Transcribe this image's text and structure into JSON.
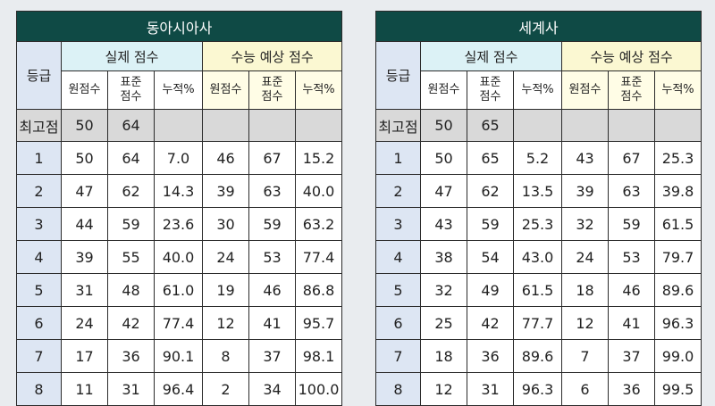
{
  "labels": {
    "grade": "등급",
    "actual": "실제 점수",
    "csat": "수능 예상 점수",
    "raw": "원점수",
    "std": "표준\n점수",
    "cum": "누적%",
    "max": "최고점"
  },
  "left": {
    "title": "동아시아사",
    "max": {
      "raw": "50",
      "std": "64",
      "cum": "",
      "e_raw": "",
      "e_std": "",
      "e_cum": ""
    },
    "rows": [
      {
        "grade": "1",
        "raw": "50",
        "std": "64",
        "cum": "7.0",
        "e_raw": "46",
        "e_std": "67",
        "e_cum": "15.2"
      },
      {
        "grade": "2",
        "raw": "47",
        "std": "62",
        "cum": "14.3",
        "e_raw": "39",
        "e_std": "63",
        "e_cum": "40.0"
      },
      {
        "grade": "3",
        "raw": "44",
        "std": "59",
        "cum": "23.6",
        "e_raw": "30",
        "e_std": "59",
        "e_cum": "63.2"
      },
      {
        "grade": "4",
        "raw": "39",
        "std": "55",
        "cum": "40.0",
        "e_raw": "24",
        "e_std": "53",
        "e_cum": "77.4"
      },
      {
        "grade": "5",
        "raw": "31",
        "std": "48",
        "cum": "61.0",
        "e_raw": "19",
        "e_std": "46",
        "e_cum": "86.8"
      },
      {
        "grade": "6",
        "raw": "24",
        "std": "42",
        "cum": "77.4",
        "e_raw": "12",
        "e_std": "41",
        "e_cum": "95.7"
      },
      {
        "grade": "7",
        "raw": "17",
        "std": "36",
        "cum": "90.1",
        "e_raw": "8",
        "e_std": "37",
        "e_cum": "98.1"
      },
      {
        "grade": "8",
        "raw": "11",
        "std": "31",
        "cum": "96.4",
        "e_raw": "2",
        "e_std": "34",
        "e_cum": "100.0"
      }
    ]
  },
  "right": {
    "title": "세계사",
    "max": {
      "raw": "50",
      "std": "65",
      "cum": "",
      "e_raw": "",
      "e_std": "",
      "e_cum": ""
    },
    "rows": [
      {
        "grade": "1",
        "raw": "50",
        "std": "65",
        "cum": "5.2",
        "e_raw": "43",
        "e_std": "67",
        "e_cum": "25.3"
      },
      {
        "grade": "2",
        "raw": "47",
        "std": "62",
        "cum": "13.5",
        "e_raw": "39",
        "e_std": "63",
        "e_cum": "39.8"
      },
      {
        "grade": "3",
        "raw": "43",
        "std": "59",
        "cum": "25.3",
        "e_raw": "32",
        "e_std": "59",
        "e_cum": "61.5"
      },
      {
        "grade": "4",
        "raw": "38",
        "std": "54",
        "cum": "43.0",
        "e_raw": "24",
        "e_std": "53",
        "e_cum": "79.7"
      },
      {
        "grade": "5",
        "raw": "32",
        "std": "49",
        "cum": "61.5",
        "e_raw": "18",
        "e_std": "46",
        "e_cum": "89.6"
      },
      {
        "grade": "6",
        "raw": "25",
        "std": "42",
        "cum": "77.7",
        "e_raw": "12",
        "e_std": "41",
        "e_cum": "96.3"
      },
      {
        "grade": "7",
        "raw": "18",
        "std": "36",
        "cum": "89.6",
        "e_raw": "7",
        "e_std": "37",
        "e_cum": "99.0"
      },
      {
        "grade": "8",
        "raw": "12",
        "std": "31",
        "cum": "96.3",
        "e_raw": "6",
        "e_std": "36",
        "e_cum": "99.5"
      }
    ]
  }
}
